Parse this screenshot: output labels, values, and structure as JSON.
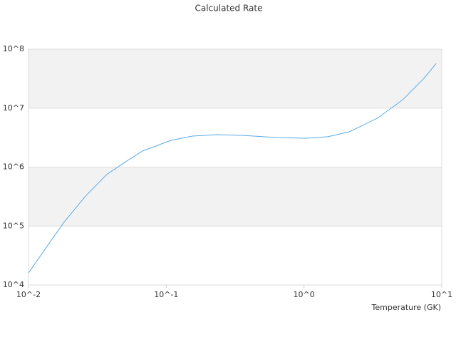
{
  "chart_data": {
    "type": "line",
    "title": "Calculated Rate",
    "x_label": "Temperature (GK)",
    "xscale": "log",
    "yscale": "log",
    "xlim": [
      0.01,
      10
    ],
    "ylim": [
      10000,
      100000000
    ],
    "xticks": [
      {
        "value": 0.01,
        "label": "10^-2"
      },
      {
        "value": 0.1,
        "label": "10^-1"
      },
      {
        "value": 1,
        "label": "10^0"
      },
      {
        "value": 10,
        "label": "10^1"
      }
    ],
    "yticks": [
      {
        "value": 10000,
        "label": "10^4"
      },
      {
        "value": 100000,
        "label": "10^5"
      },
      {
        "value": 1000000,
        "label": "10^6"
      },
      {
        "value": 10000000,
        "label": "10^7"
      },
      {
        "value": 100000000,
        "label": "10^8"
      }
    ],
    "grid": true,
    "band_color": "#f2f2f2",
    "series": [
      {
        "color": "#5aa9e6",
        "x": [
          0.01,
          0.0143,
          0.0181,
          0.0259,
          0.037,
          0.0499,
          0.0672,
          0.108,
          0.155,
          0.235,
          0.357,
          0.647,
          1.04,
          1.49,
          2.13,
          3.43,
          5.2,
          7.43,
          9.1
        ],
        "values": [
          16000,
          53000,
          116000,
          320000,
          750000,
          1200000,
          1870000,
          2840000,
          3360000,
          3550000,
          3450000,
          3160000,
          3090000,
          3270000,
          3960000,
          6800000,
          13800000,
          32000000,
          57000000
        ]
      }
    ]
  }
}
